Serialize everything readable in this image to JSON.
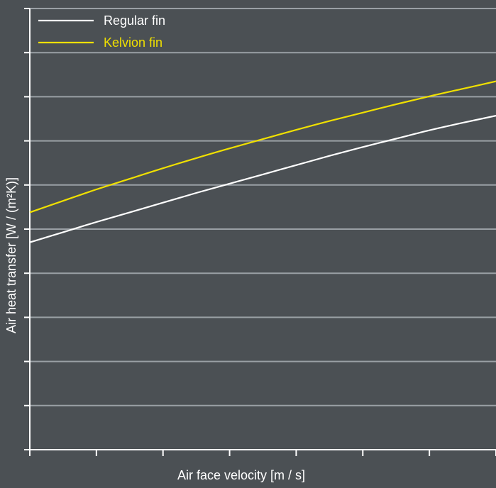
{
  "chart_data": {
    "type": "line",
    "xlabel": "Air face velocity [m / s]",
    "ylabel": "Air heat transfer [W / (m²K)]",
    "xlim": [
      0,
      7
    ],
    "ylim": [
      0,
      10
    ],
    "x_ticks_count": 7,
    "y_ticks_count": 10,
    "grid": "horizontal",
    "legend_position": "top-left",
    "series": [
      {
        "name": "Regular fin",
        "color": "#ffffff",
        "x": [
          0,
          0.5,
          1,
          1.5,
          2,
          2.5,
          3,
          3.5,
          4,
          4.5,
          5,
          5.5,
          6,
          6.5,
          7
        ],
        "values": [
          4.7,
          4.93,
          5.16,
          5.38,
          5.6,
          5.82,
          6.03,
          6.24,
          6.45,
          6.66,
          6.86,
          7.05,
          7.24,
          7.41,
          7.57
        ]
      },
      {
        "name": "Kelvion fin",
        "color": "#f0e000",
        "x": [
          0,
          0.5,
          1,
          1.5,
          2,
          2.5,
          3,
          3.5,
          4,
          4.5,
          5,
          5.5,
          6,
          6.5,
          7
        ],
        "values": [
          5.38,
          5.64,
          5.9,
          6.14,
          6.38,
          6.61,
          6.83,
          7.04,
          7.25,
          7.45,
          7.64,
          7.83,
          8.01,
          8.18,
          8.35
        ]
      }
    ]
  }
}
